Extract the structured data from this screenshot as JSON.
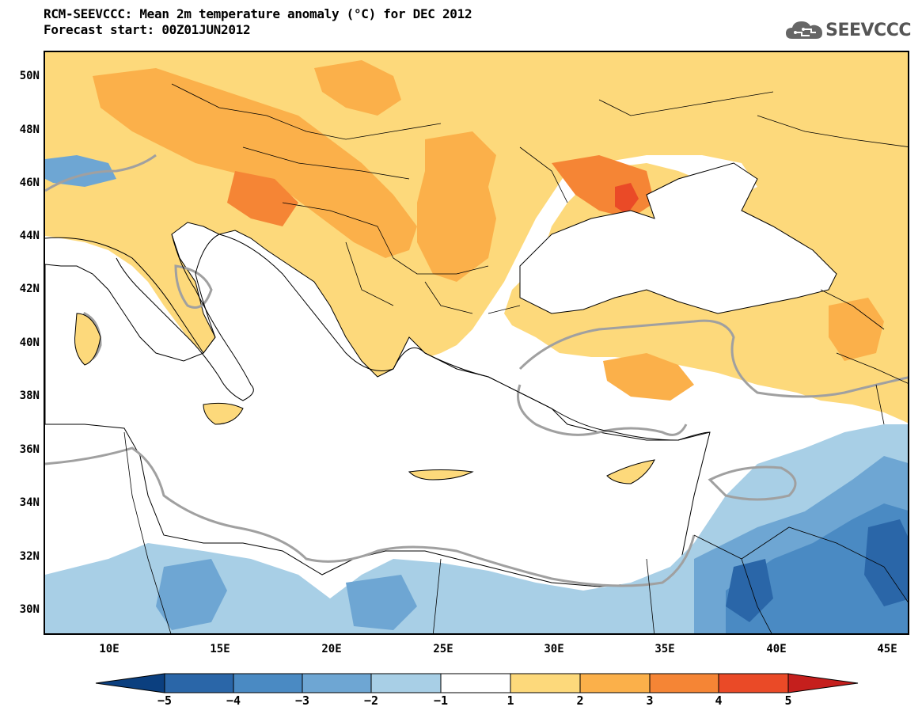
{
  "header": {
    "title_line1": "RCM-SEEVCCC: Mean 2m temperature anomaly (°C) for DEC 2012",
    "title_line2": "Forecast start: 00Z01JUN2012",
    "logo_text": "SEEVCCC"
  },
  "axes": {
    "lat_labels": [
      "50N",
      "48N",
      "46N",
      "44N",
      "42N",
      "40N",
      "38N",
      "36N",
      "34N",
      "32N",
      "30N"
    ],
    "lon_labels": [
      "10E",
      "15E",
      "20E",
      "25E",
      "30E",
      "35E",
      "40E",
      "45E"
    ]
  },
  "colorbar": {
    "labels": [
      "−5",
      "−4",
      "−3",
      "−2",
      "−1",
      "1",
      "2",
      "3",
      "4",
      "5"
    ],
    "colors": [
      "#0b3f7f",
      "#2a66a8",
      "#4a8ac3",
      "#6ea6d3",
      "#a8cfe6",
      "#ffffff",
      "#fdd97b",
      "#fbb04a",
      "#f58535",
      "#ea4a27",
      "#c51f1d"
    ]
  },
  "legend_colors": {
    "land_anom_1_2": "#fdd97b",
    "land_anom_2_3": "#fbb04a",
    "anom_3_4": "#f58535",
    "anom_4_5": "#ea4a27",
    "anom_neg_1_2": "#a8cfe6",
    "anom_neg_2_3": "#6ea6d3",
    "anom_neg_3_4": "#4a8ac3",
    "anom_neg_4_5": "#2a66a8",
    "zero_contour": "#a0a0a0"
  }
}
